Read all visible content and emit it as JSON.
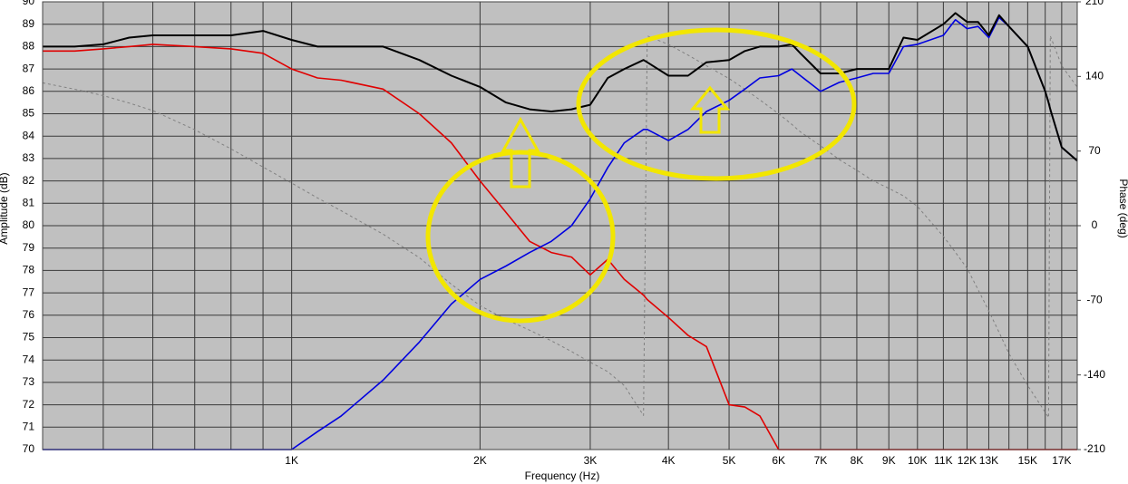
{
  "chart_data": {
    "type": "line",
    "x_label": "Frequency (Hz)",
    "y_label": "Amplitude (dB)",
    "y2_label": "Phase (deg)",
    "xscale": "log",
    "grid": true,
    "xlim": [
      400,
      18000
    ],
    "ylim": [
      70,
      90
    ],
    "y2lim": [
      -210,
      210
    ],
    "xticks": [
      {
        "value": 1000,
        "label": "1K"
      },
      {
        "value": 2000,
        "label": "2K"
      },
      {
        "value": 3000,
        "label": "3K"
      },
      {
        "value": 4000,
        "label": "4K"
      },
      {
        "value": 5000,
        "label": "5K"
      },
      {
        "value": 6000,
        "label": "6K"
      },
      {
        "value": 7000,
        "label": "7K"
      },
      {
        "value": 8000,
        "label": "8K"
      },
      {
        "value": 9000,
        "label": "9K"
      },
      {
        "value": 10000,
        "label": "10K"
      },
      {
        "value": 11000,
        "label": "11K"
      },
      {
        "value": 12000,
        "label": "12K"
      },
      {
        "value": 13000,
        "label": "13K"
      },
      {
        "value": 15000,
        "label": "15K"
      },
      {
        "value": 17000,
        "label": "17K"
      }
    ],
    "xgrid_minor": [
      500,
      600,
      700,
      800,
      900,
      14000,
      16000
    ],
    "yticks": [
      70,
      71,
      72,
      73,
      74,
      75,
      76,
      77,
      78,
      79,
      80,
      81,
      82,
      83,
      84,
      85,
      86,
      87,
      88,
      89,
      90
    ],
    "y2ticks": [
      -210,
      -140,
      -70,
      0,
      70,
      140,
      210
    ],
    "x": [
      400,
      450,
      500,
      550,
      600,
      700,
      800,
      900,
      1000,
      1100,
      1200,
      1400,
      1600,
      1800,
      2000,
      2200,
      2400,
      2600,
      2800,
      3000,
      3200,
      3400,
      3650,
      3700,
      4000,
      4300,
      4600,
      5000,
      5300,
      5600,
      6000,
      6300,
      6500,
      7000,
      7500,
      8000,
      8500,
      9000,
      9500,
      10000,
      11000,
      11500,
      12000,
      12500,
      13000,
      13500,
      14000,
      15000,
      16000,
      16200,
      16300,
      17000,
      18000
    ],
    "series": [
      {
        "color": "#808080",
        "dash": true,
        "axis": "y2",
        "values": [
          134,
          128,
          122,
          115,
          108,
          90,
          72,
          55,
          40,
          26,
          14,
          -8,
          -30,
          -55,
          -75,
          -88,
          -98,
          -108,
          -118,
          -128,
          -137,
          -150,
          -178,
          178,
          170,
          160,
          150,
          138,
          128,
          118,
          105,
          95,
          88,
          75,
          62,
          52,
          42,
          35,
          28,
          18,
          -10,
          -25,
          -40,
          -60,
          -80,
          -100,
          -120,
          -150,
          -175,
          -180,
          178,
          150,
          130
        ]
      },
      {
        "color": "#e00000",
        "values": [
          87.8,
          87.8,
          87.9,
          88.0,
          88.1,
          88.0,
          87.9,
          87.7,
          87.0,
          86.6,
          86.5,
          86.1,
          85.0,
          83.7,
          82.0,
          80.6,
          79.3,
          78.8,
          78.6,
          77.8,
          78.5,
          77.6,
          76.9,
          76.7,
          75.9,
          75.1,
          74.6,
          72.0,
          71.9,
          71.5,
          70,
          70,
          70,
          70,
          70,
          70,
          70,
          70,
          70,
          70,
          70,
          70,
          70,
          70,
          70,
          70,
          70,
          70,
          70,
          70,
          70,
          70,
          70
        ]
      },
      {
        "color": "#0000e0",
        "values": [
          70,
          70,
          70,
          70,
          70,
          70,
          70,
          70,
          70,
          70.8,
          71.5,
          73.1,
          74.8,
          76.5,
          77.6,
          78.2,
          78.8,
          79.3,
          80.0,
          81.2,
          82.6,
          83.7,
          84.3,
          84.3,
          83.8,
          84.3,
          85.1,
          85.6,
          86.1,
          86.6,
          86.7,
          87.0,
          86.7,
          86.0,
          86.4,
          86.6,
          86.8,
          86.8,
          88.0,
          88.1,
          88.5,
          89.2,
          88.8,
          88.9,
          88.4,
          89.3,
          88.9,
          88.0,
          86.0,
          85.5,
          85.2,
          83.5,
          82.9
        ]
      },
      {
        "color": "#000000",
        "width": 2,
        "values": [
          88.0,
          88.0,
          88.1,
          88.4,
          88.5,
          88.5,
          88.5,
          88.7,
          88.3,
          88.0,
          88.0,
          88.0,
          87.4,
          86.7,
          86.2,
          85.5,
          85.2,
          85.1,
          85.2,
          85.4,
          86.6,
          87.0,
          87.4,
          87.3,
          86.7,
          86.7,
          87.3,
          87.4,
          87.8,
          88.0,
          88.0,
          88.1,
          87.7,
          86.8,
          86.8,
          87.0,
          87.0,
          87.0,
          88.4,
          88.3,
          89.0,
          89.5,
          89.1,
          89.1,
          88.5,
          89.4,
          88.9,
          88.0,
          86.0,
          85.5,
          85.2,
          83.5,
          82.9
        ]
      }
    ]
  }
}
